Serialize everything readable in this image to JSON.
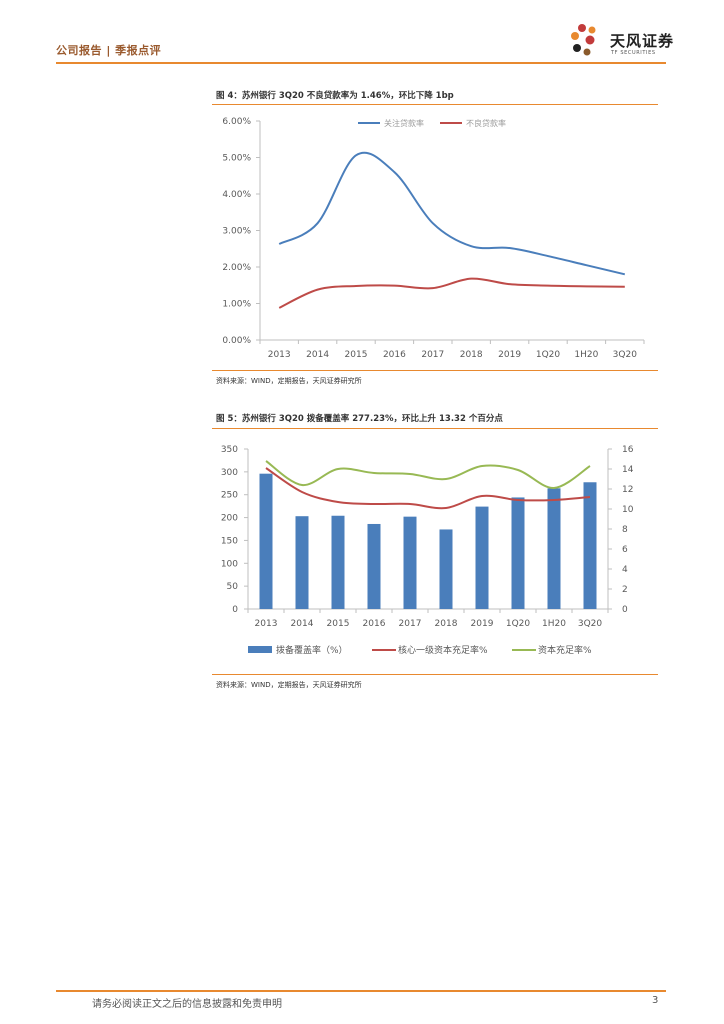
{
  "header": {
    "section": "公司报告 | 季报点评",
    "brand_name": "天风证券",
    "brand_sub": "TF SECURITIES"
  },
  "figure4": {
    "title": "图 4：苏州银行 3Q20 不良贷款率为 1.46%，环比下降 1bp",
    "source": "资料来源：WIND，定期报告，天风证券研究所"
  },
  "figure5": {
    "title": "图 5：苏州银行 3Q20 拨备覆盖率 277.23%，环比上升 13.32 个百分点",
    "source": "资料来源：WIND，定期报告，天风证券研究所"
  },
  "footer": {
    "disclaimer": "请务必阅读正文之后的信息披露和免责申明",
    "page": "3"
  },
  "colors": {
    "accent": "#e8892f",
    "blue": "#4a7ebb",
    "red": "#be4b48",
    "green": "#98b954"
  },
  "chart_data": [
    {
      "type": "line",
      "categories": [
        "2013",
        "2014",
        "2015",
        "2016",
        "2017",
        "2018",
        "2019",
        "1Q20",
        "1H20",
        "3Q20"
      ],
      "ylim": [
        0,
        6
      ],
      "yticks": [
        "0.00%",
        "1.00%",
        "2.00%",
        "3.00%",
        "4.00%",
        "5.00%",
        "6.00%"
      ],
      "series": [
        {
          "name": "关注贷款率",
          "values": [
            2.63,
            3.2,
            5.06,
            4.6,
            3.2,
            2.57,
            2.52,
            2.3,
            2.05,
            1.8
          ]
        },
        {
          "name": "不良贷款率",
          "values": [
            0.88,
            1.38,
            1.48,
            1.49,
            1.42,
            1.68,
            1.53,
            1.49,
            1.47,
            1.46
          ]
        }
      ]
    },
    {
      "type": "bar",
      "categories": [
        "2013",
        "2014",
        "2015",
        "2016",
        "2017",
        "2018",
        "2019",
        "1Q20",
        "1H20",
        "3Q20"
      ],
      "ylim": [
        0,
        350
      ],
      "yticks": [
        "0",
        "50",
        "100",
        "150",
        "200",
        "250",
        "300",
        "350"
      ],
      "y2lim": [
        0,
        16
      ],
      "y2ticks": [
        "0",
        "2",
        "4",
        "6",
        "8",
        "10",
        "12",
        "14",
        "16"
      ],
      "series": [
        {
          "name": "拨备覆盖率（%）",
          "kind": "bar",
          "axis": "left",
          "values": [
            296,
            203,
            204,
            186,
            202,
            174,
            224,
            244,
            264,
            277.23
          ]
        },
        {
          "name": "核心一级资本充足率%",
          "kind": "line",
          "axis": "right",
          "values": [
            14.1,
            11.7,
            10.7,
            10.5,
            10.5,
            10.1,
            11.3,
            10.9,
            10.9,
            11.2
          ]
        },
        {
          "name": "资本充足率%",
          "kind": "line",
          "axis": "right",
          "values": [
            14.8,
            12.4,
            14.0,
            13.6,
            13.5,
            13.0,
            14.3,
            13.9,
            12.1,
            14.3
          ]
        }
      ]
    }
  ]
}
